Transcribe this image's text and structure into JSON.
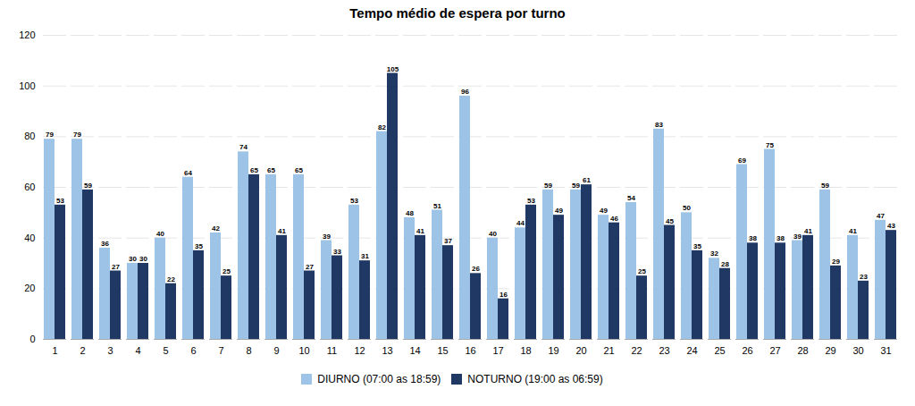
{
  "chart_data": {
    "type": "bar",
    "title": "Tempo médio de espera por turno",
    "categories": [
      1,
      2,
      3,
      4,
      5,
      6,
      7,
      8,
      9,
      10,
      11,
      12,
      13,
      14,
      15,
      16,
      17,
      18,
      19,
      20,
      21,
      22,
      23,
      24,
      25,
      26,
      27,
      28,
      29,
      30,
      31
    ],
    "series": [
      {
        "name": "DIURNO (07:00 as 18:59)",
        "color": "#9dc3e6",
        "values": [
          79,
          79,
          36,
          30,
          40,
          64,
          42,
          74,
          65,
          65,
          39,
          53,
          82,
          48,
          51,
          96,
          40,
          44,
          59,
          59,
          49,
          54,
          83,
          50,
          32,
          69,
          75,
          39,
          59,
          41,
          47
        ]
      },
      {
        "name": "NOTURNO (19:00 as 06:59)",
        "color": "#1f3864",
        "values": [
          53,
          59,
          27,
          30,
          22,
          35,
          25,
          65,
          41,
          27,
          33,
          31,
          105,
          41,
          37,
          26,
          16,
          53,
          49,
          61,
          46,
          25,
          45,
          35,
          28,
          38,
          38,
          41,
          29,
          23,
          43
        ]
      }
    ],
    "ylim": [
      0,
      120
    ],
    "yticks": [
      0,
      20,
      40,
      60,
      80,
      100,
      120
    ],
    "grid": true,
    "legend": "bottom",
    "data_labels": true
  }
}
